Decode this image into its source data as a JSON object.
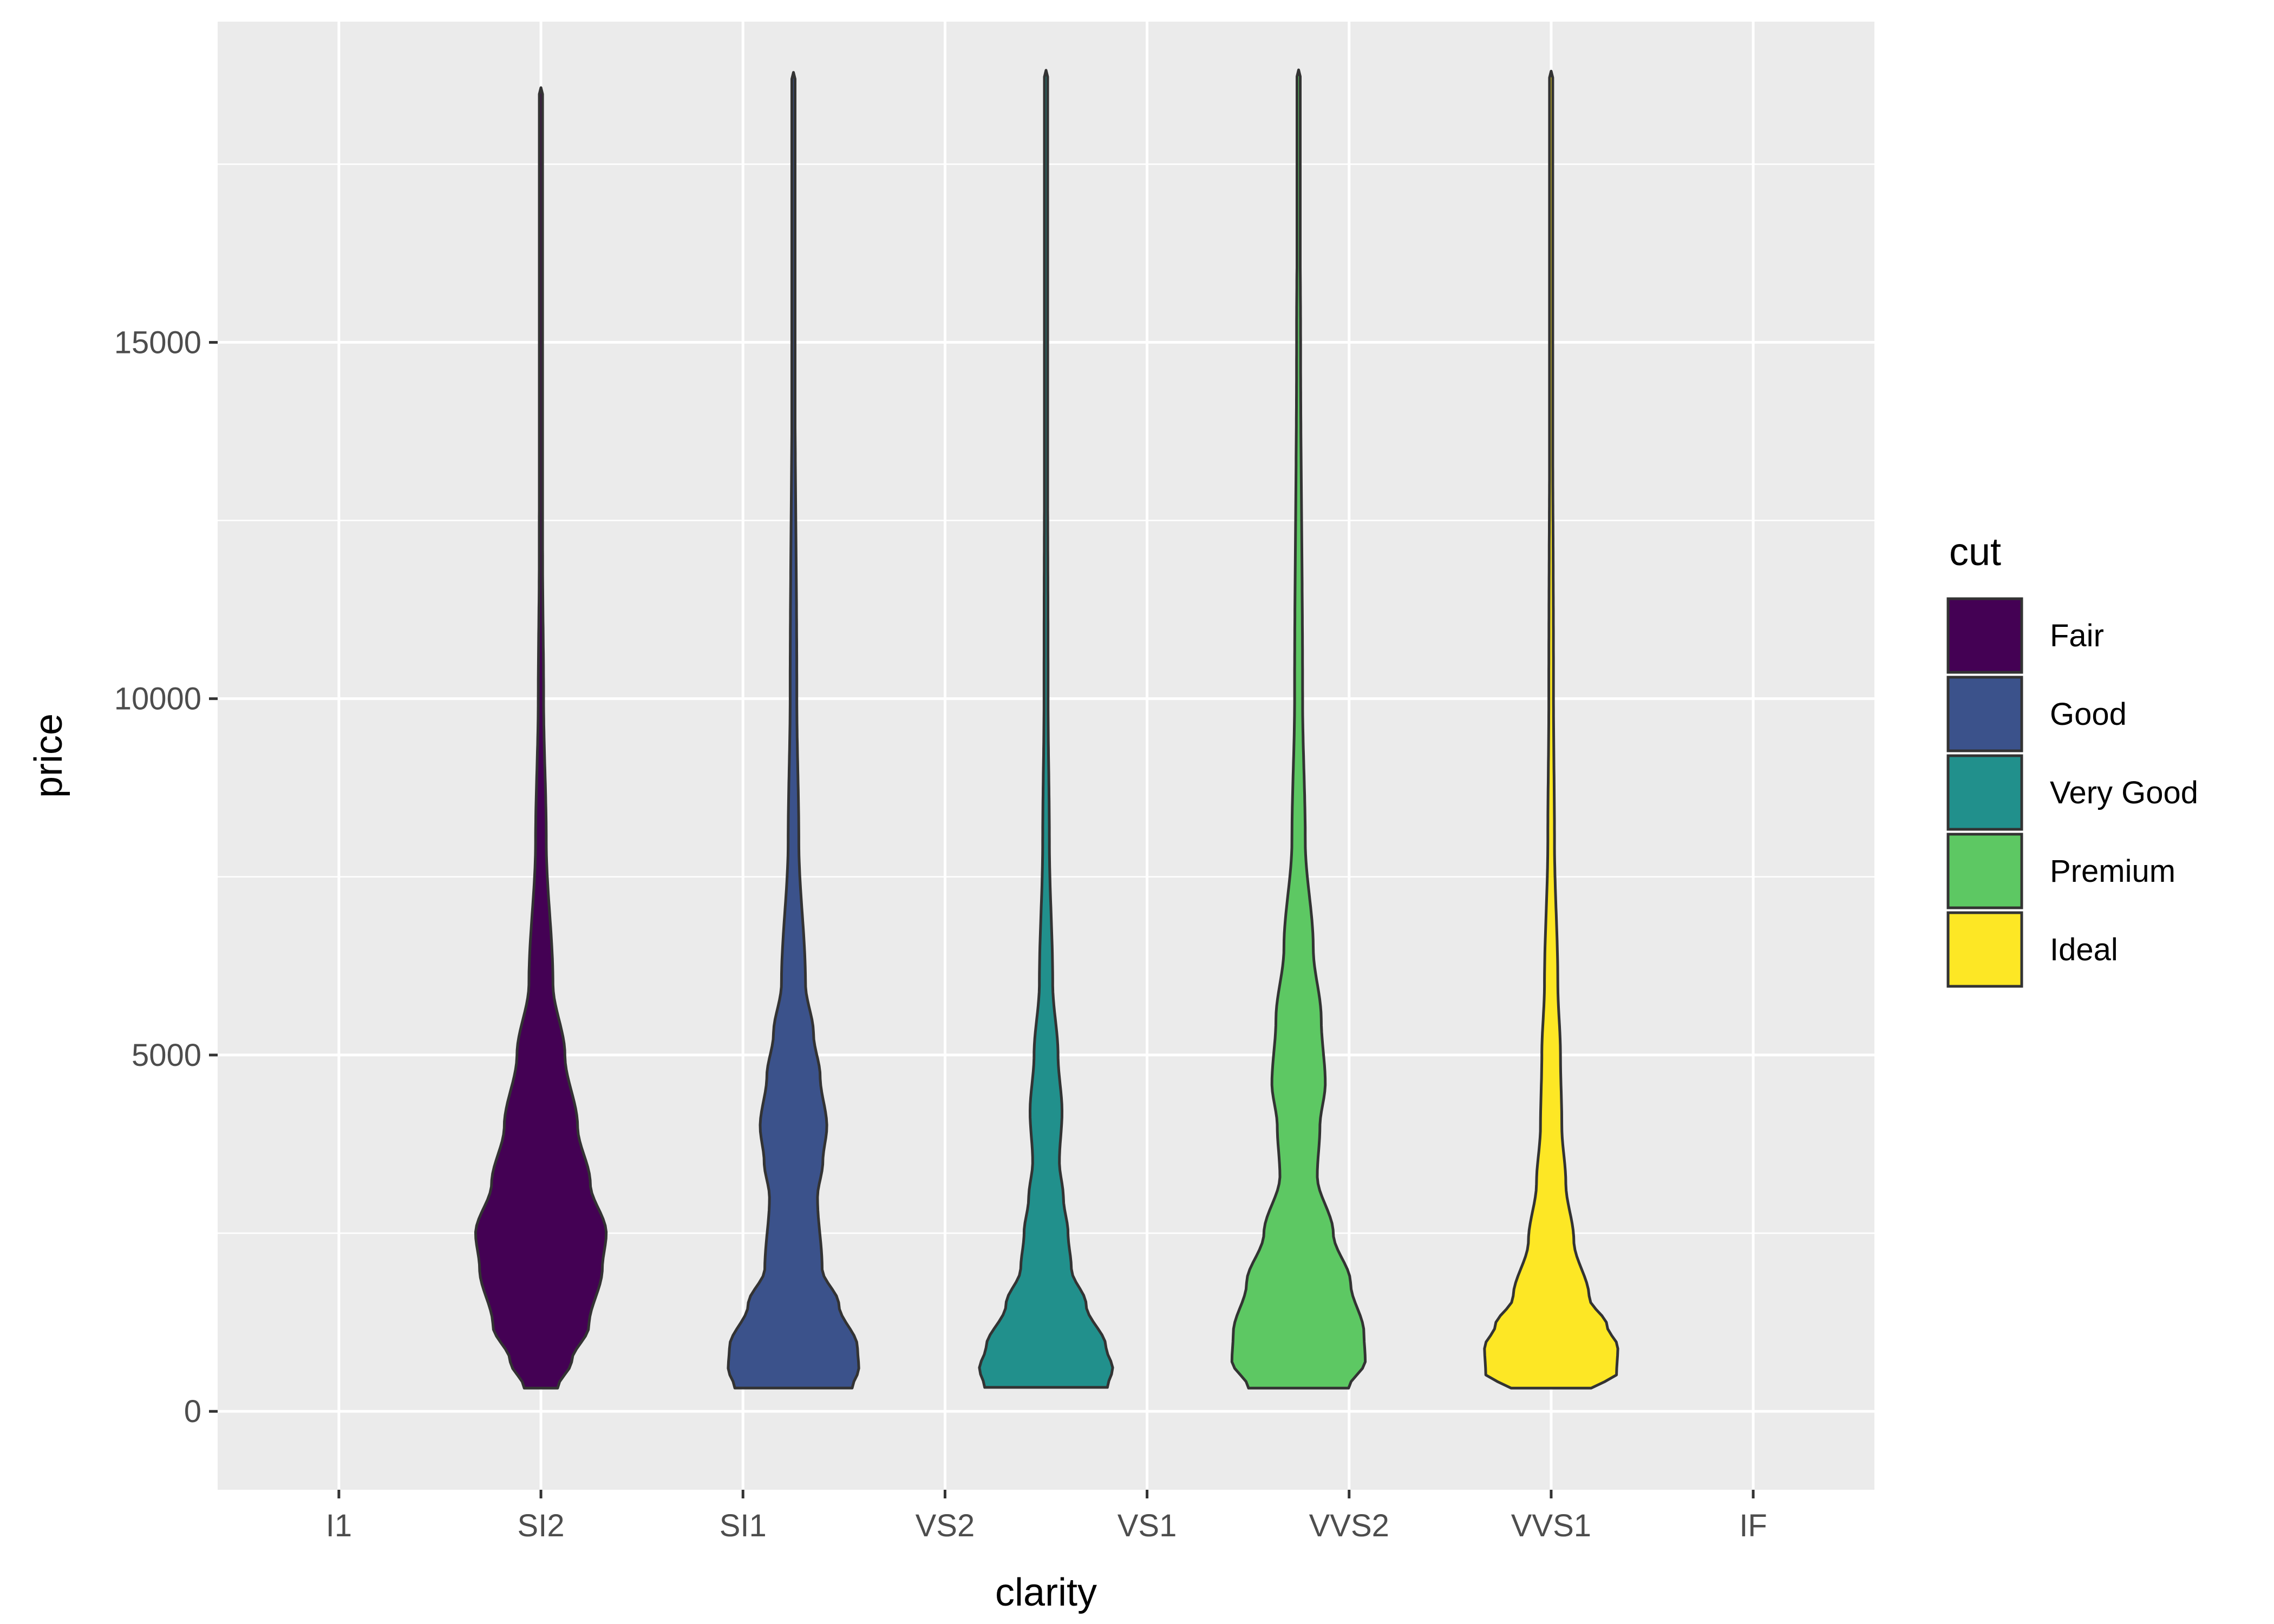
{
  "chart_data": {
    "type": "violin",
    "title": "",
    "xlabel": "clarity",
    "ylabel": "price",
    "categories": [
      "I1",
      "SI2",
      "SI1",
      "VS2",
      "VS1",
      "VVS2",
      "VVS1",
      "IF"
    ],
    "ylim": [
      -1100,
      19500
    ],
    "yticks": [
      0,
      5000,
      10000,
      15000
    ],
    "legend": {
      "title": "cut",
      "placement": "right",
      "entries": [
        {
          "label": "Fair",
          "color": "#440154"
        },
        {
          "label": "Good",
          "color": "#3B528B"
        },
        {
          "label": "Very Good",
          "color": "#21908C"
        },
        {
          "label": "Premium",
          "color": "#5DC863"
        },
        {
          "label": "Ideal",
          "color": "#FDE725"
        }
      ]
    },
    "violins": [
      {
        "cut": "Fair",
        "center": 1.0,
        "min": 326,
        "max": 18574,
        "profile": [
          [
            326,
            0.25
          ],
          [
            700,
            0.46
          ],
          [
            1200,
            0.72
          ],
          [
            2000,
            0.92
          ],
          [
            2500,
            0.98
          ],
          [
            3200,
            0.74
          ],
          [
            4000,
            0.55
          ],
          [
            5000,
            0.36
          ],
          [
            6000,
            0.18
          ],
          [
            8000,
            0.08
          ],
          [
            10000,
            0.04
          ],
          [
            12000,
            0.025
          ],
          [
            15000,
            0.02
          ],
          [
            18574,
            0.0
          ]
        ]
      },
      {
        "cut": "Good",
        "center": 2.25,
        "min": 327,
        "max": 18788,
        "profile": [
          [
            327,
            0.88
          ],
          [
            600,
            0.98
          ],
          [
            900,
            0.96
          ],
          [
            1500,
            0.68
          ],
          [
            2000,
            0.43
          ],
          [
            3000,
            0.36
          ],
          [
            3500,
            0.44
          ],
          [
            4000,
            0.5
          ],
          [
            4700,
            0.4
          ],
          [
            5300,
            0.3
          ],
          [
            6000,
            0.18
          ],
          [
            8000,
            0.08
          ],
          [
            10000,
            0.05
          ],
          [
            15000,
            0.02
          ],
          [
            18788,
            0.0
          ]
        ]
      },
      {
        "cut": "Very Good",
        "center": 3.5,
        "min": 336,
        "max": 18818,
        "profile": [
          [
            336,
            0.92
          ],
          [
            600,
            1.0
          ],
          [
            900,
            0.9
          ],
          [
            1500,
            0.6
          ],
          [
            2000,
            0.38
          ],
          [
            2500,
            0.33
          ],
          [
            3000,
            0.26
          ],
          [
            3500,
            0.2
          ],
          [
            4200,
            0.24
          ],
          [
            5000,
            0.18
          ],
          [
            6000,
            0.1
          ],
          [
            8000,
            0.05
          ],
          [
            10000,
            0.03
          ],
          [
            15000,
            0.02
          ],
          [
            18818,
            0.0
          ]
        ]
      },
      {
        "cut": "Premium",
        "center": 4.75,
        "min": 326,
        "max": 18823,
        "profile": [
          [
            326,
            0.75
          ],
          [
            700,
            1.0
          ],
          [
            1100,
            0.98
          ],
          [
            1800,
            0.78
          ],
          [
            2500,
            0.52
          ],
          [
            3300,
            0.28
          ],
          [
            4000,
            0.32
          ],
          [
            4600,
            0.4
          ],
          [
            5500,
            0.34
          ],
          [
            6500,
            0.22
          ],
          [
            8000,
            0.1
          ],
          [
            10000,
            0.06
          ],
          [
            15000,
            0.03
          ],
          [
            18823,
            0.0
          ]
        ]
      },
      {
        "cut": "Ideal",
        "center": 6.0,
        "min": 326,
        "max": 18806,
        "profile": [
          [
            326,
            0.6
          ],
          [
            500,
            0.98
          ],
          [
            900,
            1.0
          ],
          [
            1200,
            0.84
          ],
          [
            1600,
            0.57
          ],
          [
            2400,
            0.34
          ],
          [
            3200,
            0.22
          ],
          [
            4000,
            0.16
          ],
          [
            5000,
            0.14
          ],
          [
            6000,
            0.1
          ],
          [
            8000,
            0.05
          ],
          [
            10000,
            0.035
          ],
          [
            15000,
            0.02
          ],
          [
            18806,
            0.0
          ]
        ]
      }
    ]
  }
}
